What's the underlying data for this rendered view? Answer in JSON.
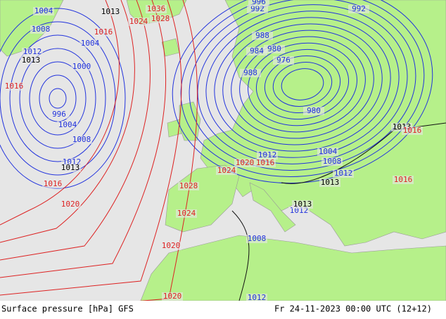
{
  "isobar_labels": [
    1004,
    1008,
    1012,
    1004,
    1000,
    996,
    1004,
    1008,
    1012,
    992,
    996,
    988,
    984,
    980,
    976,
    988,
    980,
    992,
    1012,
    1004,
    1008,
    1012,
    1008,
    1012,
    1012,
    1013,
    1013,
    1013,
    1013,
    1013,
    1013,
    1016,
    1016,
    1020,
    1028,
    1024,
    1024,
    1020,
    1016,
    1020,
    1020,
    1036,
    1024,
    1028,
    1016,
    1016,
    1016
  ],
  "footer": {
    "product": "Surface pressure [hPa] GFS",
    "valid_time": "Fr 24-11-2023 00:00 UTC (12+12)"
  }
}
